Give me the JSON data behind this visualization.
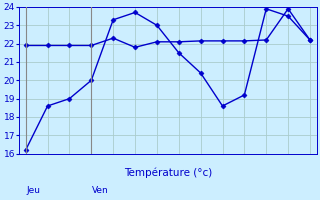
{
  "bg_color": "#cceeff",
  "grid_color": "#aacccc",
  "line_color": "#0000cc",
  "vline_color": "#888888",
  "line1_x": [
    0,
    1,
    2,
    3,
    4,
    5,
    6,
    7,
    8,
    9,
    10,
    11,
    12,
    13
  ],
  "line1_y": [
    16.2,
    18.6,
    19.0,
    20.0,
    23.3,
    23.7,
    23.0,
    21.5,
    20.4,
    18.6,
    19.2,
    23.9,
    23.5,
    22.2
  ],
  "line2_x": [
    0,
    1,
    2,
    3,
    4,
    5,
    6,
    7,
    8,
    9,
    10,
    11,
    12,
    13
  ],
  "line2_y": [
    21.9,
    21.9,
    21.9,
    21.9,
    22.3,
    21.8,
    22.1,
    22.1,
    22.15,
    22.15,
    22.15,
    22.2,
    23.9,
    22.2
  ],
  "ylim": [
    16,
    24
  ],
  "ytick_step": 1,
  "xtick_step": 1,
  "xlim": [
    -0.3,
    13.3
  ],
  "day_vlines_x": [
    0.0,
    3.0
  ],
  "day_labels": [
    [
      "Jeu",
      0.05
    ],
    [
      "Ven",
      3.05
    ]
  ],
  "xlabel": "Température (°c)",
  "xlabel_fontsize": 7.5,
  "tick_fontsize": 6.5,
  "day_label_fontsize": 6.5,
  "marker": "D",
  "markersize": 2.5,
  "linewidth": 1.0
}
